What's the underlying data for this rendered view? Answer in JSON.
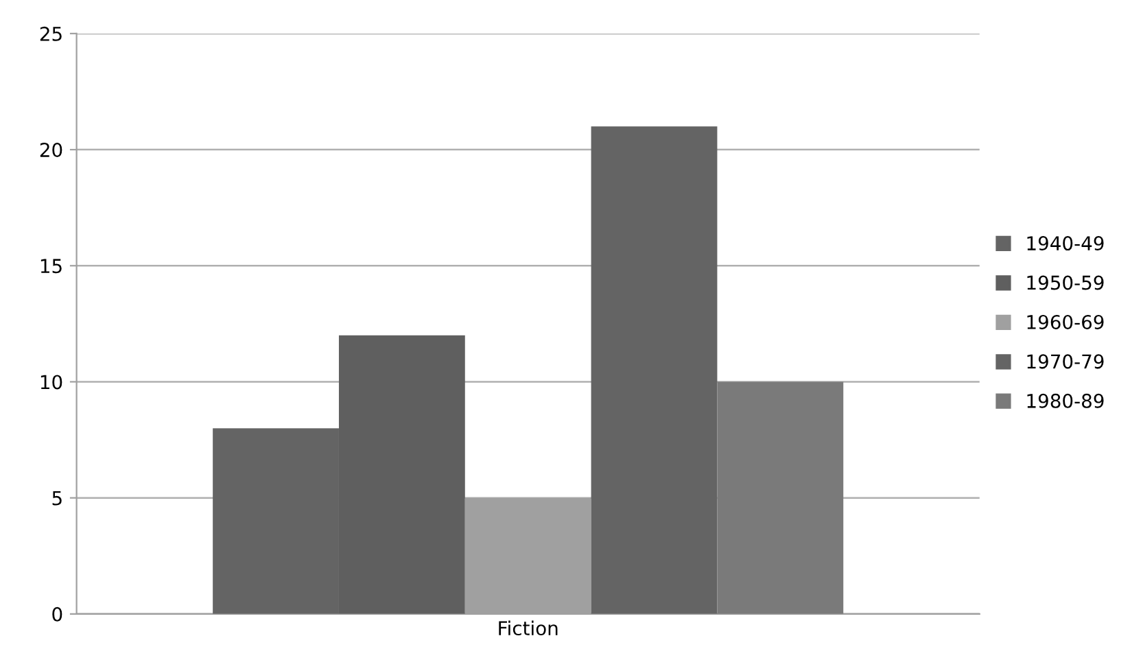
{
  "chart_data": {
    "type": "bar",
    "categories": [
      "Fiction"
    ],
    "series": [
      {
        "name": "1940-49",
        "color": "#646464",
        "values": [
          8
        ]
      },
      {
        "name": "1950-59",
        "color": "#5f5f5f",
        "values": [
          12
        ]
      },
      {
        "name": "1960-69",
        "color": "#a0a0a0",
        "values": [
          5
        ]
      },
      {
        "name": "1970-79",
        "color": "#646464",
        "values": [
          21
        ]
      },
      {
        "name": "1980-89",
        "color": "#7a7a7a",
        "values": [
          10
        ]
      }
    ],
    "ylim": [
      0,
      25
    ],
    "yticks": [
      0,
      5,
      10,
      15,
      20,
      25
    ],
    "grid": "y",
    "legend": "right"
  }
}
